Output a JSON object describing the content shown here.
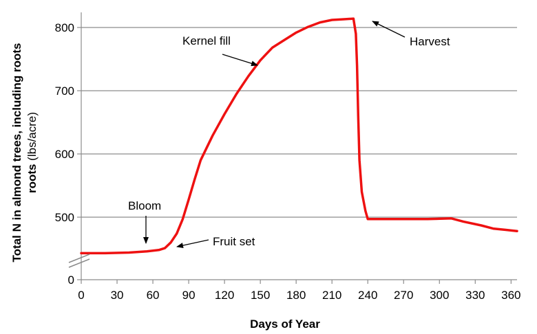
{
  "chart_data": {
    "type": "line",
    "xlabel": "Days of Year",
    "ylabel_bold": "Total N in almond trees, including roots",
    "ylabel_units": "(lbs/acre)",
    "x_ticks": [
      0,
      30,
      60,
      90,
      120,
      150,
      180,
      210,
      240,
      270,
      300,
      330,
      360
    ],
    "y_ticks": [
      0,
      500,
      600,
      700,
      800
    ],
    "xlim": [
      0,
      365
    ],
    "ylim": [
      400,
      820
    ],
    "y_axis_break": true,
    "grid": "horizontal",
    "series_color": "#ee1111",
    "series": [
      {
        "x": [
          0,
          20,
          40,
          55,
          65,
          70,
          75,
          80,
          85,
          90,
          95,
          100,
          110,
          120,
          130,
          140,
          150,
          160,
          170,
          180,
          190,
          200,
          210,
          220,
          228,
          230,
          231,
          232,
          233,
          235,
          238,
          240,
          250,
          270,
          290,
          310,
          320,
          335,
          345,
          355,
          365
        ],
        "y": [
          443,
          443,
          444,
          446,
          448,
          451,
          460,
          474,
          497,
          528,
          560,
          590,
          629,
          663,
          695,
          723,
          748,
          768,
          780,
          792,
          801,
          808,
          812,
          813,
          814,
          790,
          740,
          660,
          590,
          540,
          510,
          497,
          497,
          497,
          497,
          498,
          493,
          487,
          482,
          480,
          478
        ]
      }
    ],
    "annotations": [
      {
        "text": "Kernel fill"
      },
      {
        "text": "Harvest"
      },
      {
        "text": "Bloom"
      },
      {
        "text": "Fruit set"
      }
    ]
  }
}
